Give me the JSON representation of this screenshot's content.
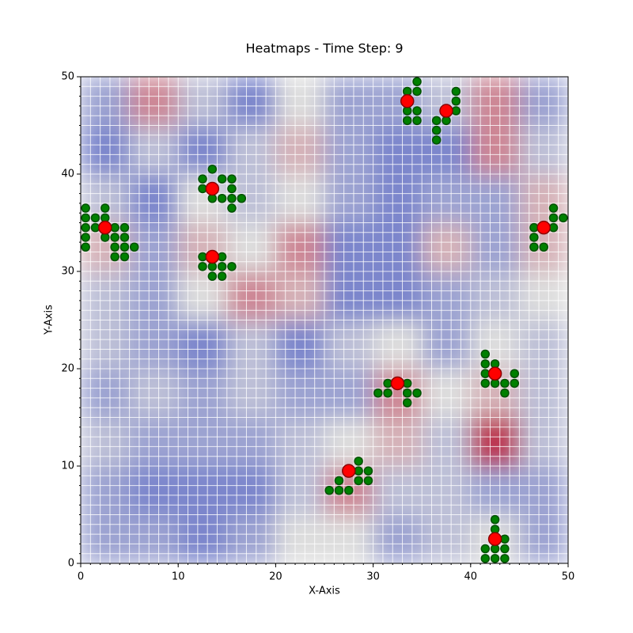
{
  "chart_data": {
    "type": "heatmap",
    "title": "Heatmaps - Time Step: 9",
    "xlabel": "X-Axis",
    "ylabel": "Y-Axis",
    "xlim": [
      0,
      50
    ],
    "ylim": [
      0,
      50
    ],
    "xticks": [
      0,
      10,
      20,
      30,
      40,
      50
    ],
    "yticks": [
      0,
      10,
      20,
      30,
      40,
      50
    ],
    "grid": true,
    "grid_step": 1,
    "grid_color": "#ffffff",
    "colormap": [
      "#3b4cc0",
      "#dddddd",
      "#b40426"
    ],
    "vlim": [
      0,
      1
    ],
    "heatmap": {
      "xbins": [
        0,
        5,
        10,
        15,
        20,
        25,
        30,
        35,
        40,
        45,
        50
      ],
      "ybins": [
        0,
        5,
        10,
        15,
        20,
        25,
        30,
        35,
        40,
        45,
        50
      ],
      "values": [
        [
          0.3,
          0.3,
          0.2,
          0.3,
          0.5,
          0.5,
          0.3,
          0.4,
          0.5,
          0.3
        ],
        [
          0.3,
          0.2,
          0.2,
          0.2,
          0.4,
          0.7,
          0.4,
          0.4,
          0.3,
          0.3
        ],
        [
          0.4,
          0.3,
          0.3,
          0.3,
          0.4,
          0.5,
          0.6,
          0.4,
          0.9,
          0.4
        ],
        [
          0.3,
          0.4,
          0.3,
          0.4,
          0.3,
          0.3,
          0.7,
          0.5,
          0.6,
          0.4
        ],
        [
          0.4,
          0.3,
          0.2,
          0.4,
          0.2,
          0.4,
          0.5,
          0.3,
          0.5,
          0.4
        ],
        [
          0.4,
          0.3,
          0.5,
          0.7,
          0.6,
          0.2,
          0.2,
          0.3,
          0.4,
          0.5
        ],
        [
          0.6,
          0.3,
          0.6,
          0.5,
          0.7,
          0.2,
          0.2,
          0.6,
          0.3,
          0.6
        ],
        [
          0.4,
          0.2,
          0.5,
          0.4,
          0.5,
          0.3,
          0.2,
          0.3,
          0.3,
          0.6
        ],
        [
          0.2,
          0.4,
          0.2,
          0.4,
          0.6,
          0.3,
          0.2,
          0.2,
          0.7,
          0.4
        ],
        [
          0.3,
          0.7,
          0.4,
          0.2,
          0.5,
          0.3,
          0.3,
          0.4,
          0.7,
          0.3
        ]
      ]
    },
    "series": [
      {
        "type": "scatter",
        "color": "#008000",
        "edgecolor": "#005000",
        "size": 5,
        "x": [
          0.5,
          2.5,
          0.5,
          1.5,
          2.5,
          0.5,
          1.5,
          3.5,
          4.5,
          0.5,
          2.5,
          3.5,
          4.5,
          0.5,
          3.5,
          4.5,
          5.5,
          3.5,
          4.5,
          13.5,
          12.5,
          14.5,
          15.5,
          12.5,
          15.5,
          13.5,
          14.5,
          15.5,
          16.5,
          15.5,
          12.5,
          14.5,
          12.5,
          13.5,
          14.5,
          15.5,
          13.5,
          14.5,
          34.5,
          33.5,
          34.5,
          38.5,
          38.5,
          33.5,
          34.5,
          38.5,
          33.5,
          34.5,
          36.5,
          37.5,
          36.5,
          36.5,
          48.5,
          48.5,
          49.5,
          46.5,
          48.5,
          46.5,
          46.5,
          47.5,
          31.5,
          33.5,
          30.5,
          31.5,
          33.5,
          34.5,
          33.5,
          41.5,
          41.5,
          42.5,
          41.5,
          44.5,
          41.5,
          42.5,
          43.5,
          44.5,
          43.5,
          28.5,
          26.5,
          28.5,
          29.5,
          28.5,
          29.5,
          25.5,
          26.5,
          27.5,
          42.5,
          42.5,
          43.5,
          41.5,
          42.5,
          43.5,
          41.5,
          42.5,
          43.5
        ],
        "y": [
          36.5,
          36.5,
          35.5,
          35.5,
          35.5,
          34.5,
          34.5,
          34.5,
          34.5,
          33.5,
          33.5,
          33.5,
          33.5,
          32.5,
          32.5,
          32.5,
          32.5,
          31.5,
          31.5,
          40.5,
          39.5,
          39.5,
          39.5,
          38.5,
          38.5,
          37.5,
          37.5,
          37.5,
          37.5,
          36.5,
          31.5,
          31.5,
          30.5,
          30.5,
          30.5,
          30.5,
          29.5,
          29.5,
          49.5,
          48.5,
          48.5,
          48.5,
          47.5,
          46.5,
          46.5,
          46.5,
          45.5,
          45.5,
          45.5,
          45.5,
          44.5,
          43.5,
          36.5,
          35.5,
          35.5,
          34.5,
          34.5,
          33.5,
          32.5,
          32.5,
          18.5,
          18.5,
          17.5,
          17.5,
          17.5,
          17.5,
          16.5,
          21.5,
          20.5,
          20.5,
          19.5,
          19.5,
          18.5,
          18.5,
          18.5,
          18.5,
          17.5,
          10.5,
          8.5,
          9.5,
          9.5,
          8.5,
          8.5,
          7.5,
          7.5,
          7.5,
          4.5,
          3.5,
          2.5,
          1.5,
          1.5,
          1.5,
          0.5,
          0.5,
          0.5
        ]
      },
      {
        "type": "scatter",
        "color": "#ff0000",
        "edgecolor": "#8b0000",
        "size": 8,
        "x": [
          2.5,
          13.5,
          13.5,
          33.5,
          37.5,
          47.5,
          32.5,
          42.5,
          27.5,
          42.5
        ],
        "y": [
          34.5,
          38.5,
          31.5,
          47.5,
          46.5,
          34.5,
          18.5,
          19.5,
          9.5,
          2.5
        ]
      }
    ]
  }
}
